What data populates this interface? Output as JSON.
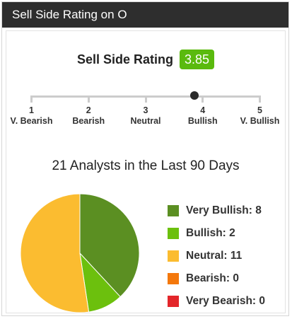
{
  "header": {
    "title": "Sell Side Rating on O"
  },
  "rating": {
    "label": "Sell Side Rating",
    "value": "3.85",
    "numeric": 3.85,
    "badge_color": "#5aba0e"
  },
  "scale": {
    "min": 1,
    "max": 5,
    "points": [
      {
        "num": "1",
        "label": "V. Bearish"
      },
      {
        "num": "2",
        "label": "Bearish"
      },
      {
        "num": "3",
        "label": "Neutral"
      },
      {
        "num": "4",
        "label": "Bullish"
      },
      {
        "num": "5",
        "label": "V. Bullish"
      }
    ]
  },
  "analysts": {
    "summary": "21 Analysts in the Last 90 Days"
  },
  "chart_data": {
    "type": "pie",
    "categories": [
      "Very Bullish",
      "Bullish",
      "Neutral",
      "Bearish",
      "Very Bearish"
    ],
    "values": [
      8,
      2,
      11,
      0,
      0
    ],
    "colors": [
      "#5b8f22",
      "#6cc00d",
      "#fbbc30",
      "#f4780b",
      "#e3262a"
    ]
  },
  "legend": [
    {
      "text": "Very Bullish: 8",
      "color": "#5b8f22"
    },
    {
      "text": "Bullish: 2",
      "color": "#6cc00d"
    },
    {
      "text": "Neutral: 11",
      "color": "#fbbc30"
    },
    {
      "text": "Bearish: 0",
      "color": "#f4780b"
    },
    {
      "text": "Very Bearish: 0",
      "color": "#e3262a"
    }
  ]
}
